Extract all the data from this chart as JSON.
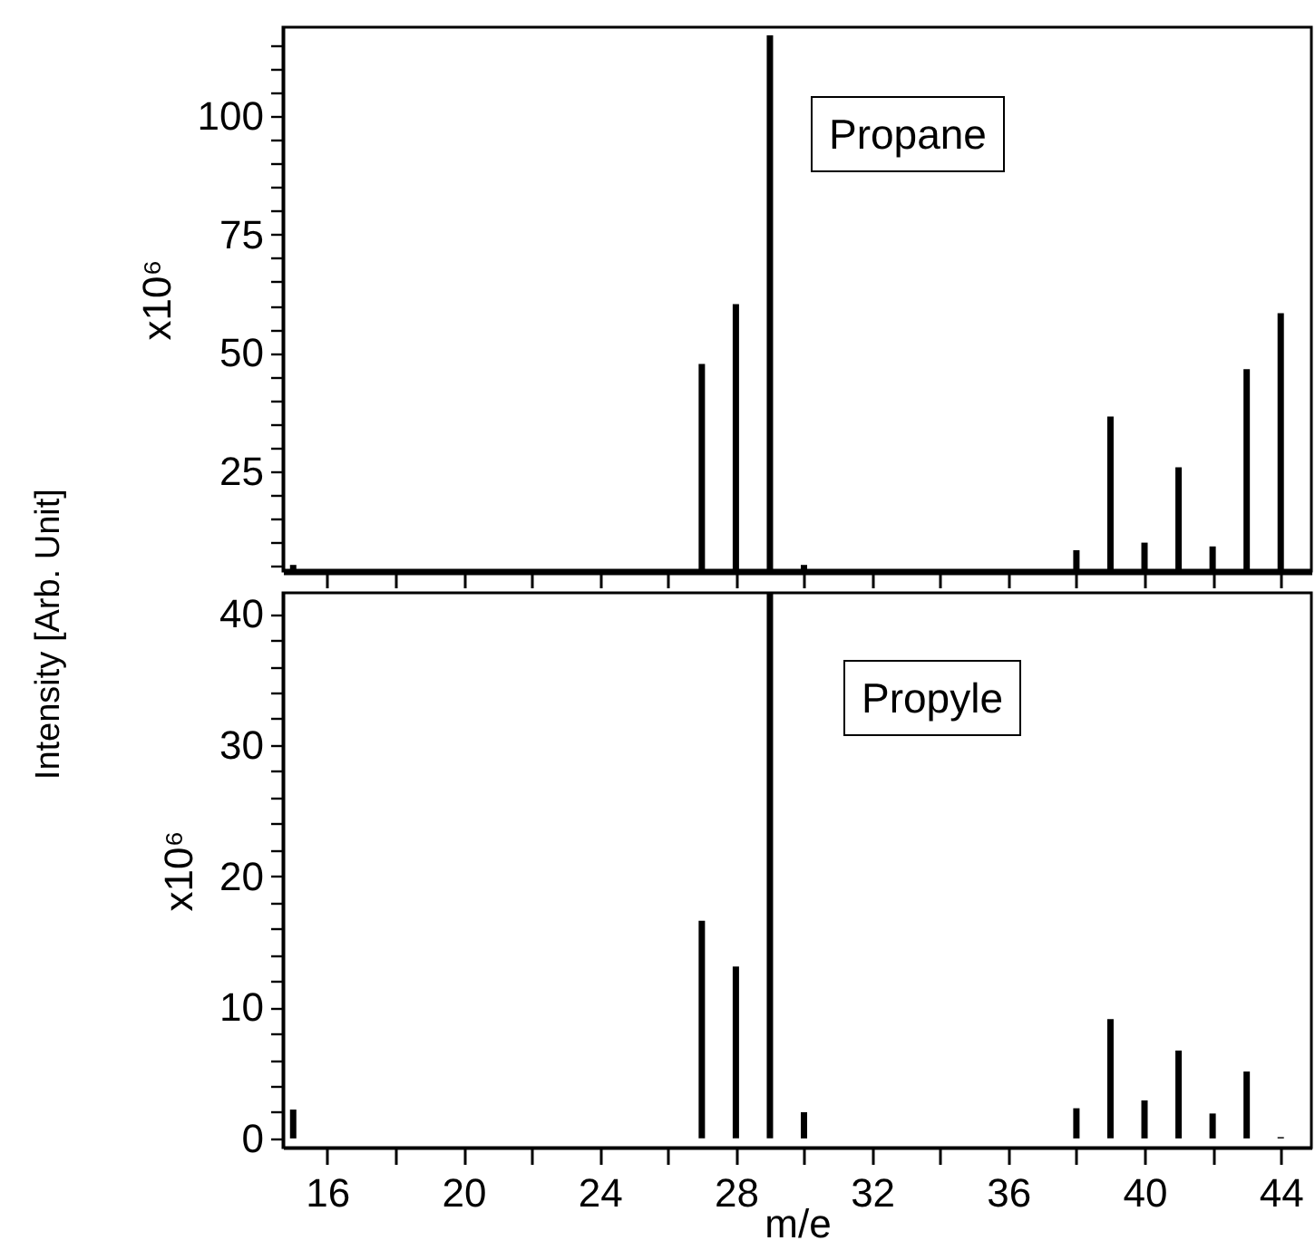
{
  "chart_data": [
    {
      "type": "bar",
      "title": "Propane",
      "ylabel": "x10⁶",
      "annotations": [
        "Intensity [Arb. Unit]"
      ],
      "x": [
        15,
        27,
        28,
        29,
        30,
        38,
        39,
        40,
        41,
        42,
        43,
        44
      ],
      "series": [
        {
          "color": "#000000",
          "values": [
            5.3,
            47.7,
            60.3,
            117,
            5.3,
            8.4,
            36.6,
            10,
            25.9,
            9.2,
            46.6,
            58.4
          ]
        }
      ],
      "xlim": [
        14.7,
        44.9
      ],
      "xticks": [
        {
          "value": 16,
          "label": null
        },
        {
          "value": 18,
          "label": null
        },
        {
          "value": 20,
          "label": null
        },
        {
          "value": 22,
          "label": null
        },
        {
          "value": 24,
          "label": null
        },
        {
          "value": 26,
          "label": null
        },
        {
          "value": 28,
          "label": null
        },
        {
          "value": 30,
          "label": null
        },
        {
          "value": 32,
          "label": null
        },
        {
          "value": 34,
          "label": null
        },
        {
          "value": 36,
          "label": null
        },
        {
          "value": 38,
          "label": null
        },
        {
          "value": 40,
          "label": null
        },
        {
          "value": 42,
          "label": null
        },
        {
          "value": 44,
          "label": null
        }
      ],
      "ylim": [
        4,
        118.7
      ],
      "yticks": [
        {
          "value": 5,
          "label": null
        },
        {
          "value": 10,
          "label": null
        },
        {
          "value": 15,
          "label": null
        },
        {
          "value": 20,
          "label": null
        },
        25,
        {
          "value": 30,
          "label": null
        },
        {
          "value": 35,
          "label": null
        },
        {
          "value": 40,
          "label": null
        },
        {
          "value": 45,
          "label": null
        },
        50,
        {
          "value": 55,
          "label": null
        },
        {
          "value": 60,
          "label": null
        },
        {
          "value": 65,
          "label": null
        },
        {
          "value": 70,
          "label": null
        },
        75,
        {
          "value": 80,
          "label": null
        },
        {
          "value": 85,
          "label": null
        },
        {
          "value": 90,
          "label": null
        },
        {
          "value": 95,
          "label": null
        },
        100,
        {
          "value": 105,
          "label": null
        },
        {
          "value": 110,
          "label": null
        },
        {
          "value": 115,
          "label": null
        }
      ],
      "tick_labels": "y",
      "grid": false
    },
    {
      "type": "bar",
      "title": "Propyle",
      "ylabel": "x10⁶",
      "xlabel": "m/e",
      "x": [
        15,
        27,
        28,
        29,
        30,
        38,
        39,
        40,
        41,
        42,
        43,
        44
      ],
      "series": [
        {
          "color": "#000000",
          "values": [
            2.2,
            16.6,
            13.1,
            41.6,
            2.0,
            2.3,
            9.1,
            2.9,
            6.7,
            1.9,
            5.1,
            0.1
          ]
        }
      ],
      "xlim": [
        14.7,
        44.9
      ],
      "xticks": [
        16,
        {
          "value": 18,
          "label": null
        },
        20,
        {
          "value": 22,
          "label": null
        },
        24,
        {
          "value": 26,
          "label": null
        },
        28,
        {
          "value": 30,
          "label": null
        },
        32,
        {
          "value": 34,
          "label": null
        },
        36,
        {
          "value": 38,
          "label": null
        },
        40,
        {
          "value": 42,
          "label": null
        },
        44
      ],
      "ylim": [
        -0.7,
        41.6
      ],
      "yticks": [
        0,
        {
          "value": 2,
          "label": null
        },
        {
          "value": 4,
          "label": null
        },
        {
          "value": 6,
          "label": null
        },
        {
          "value": 8,
          "label": null
        },
        10,
        {
          "value": 12,
          "label": null
        },
        {
          "value": 14,
          "label": null
        },
        {
          "value": 16,
          "label": null
        },
        {
          "value": 18,
          "label": null
        },
        20,
        {
          "value": 22,
          "label": null
        },
        {
          "value": 24,
          "label": null
        },
        {
          "value": 26,
          "label": null
        },
        {
          "value": 28,
          "label": null
        },
        30,
        {
          "value": 32,
          "label": null
        },
        {
          "value": 34,
          "label": null
        },
        {
          "value": 36,
          "label": null
        },
        {
          "value": 38,
          "label": null
        },
        40
      ],
      "grid": false
    }
  ]
}
